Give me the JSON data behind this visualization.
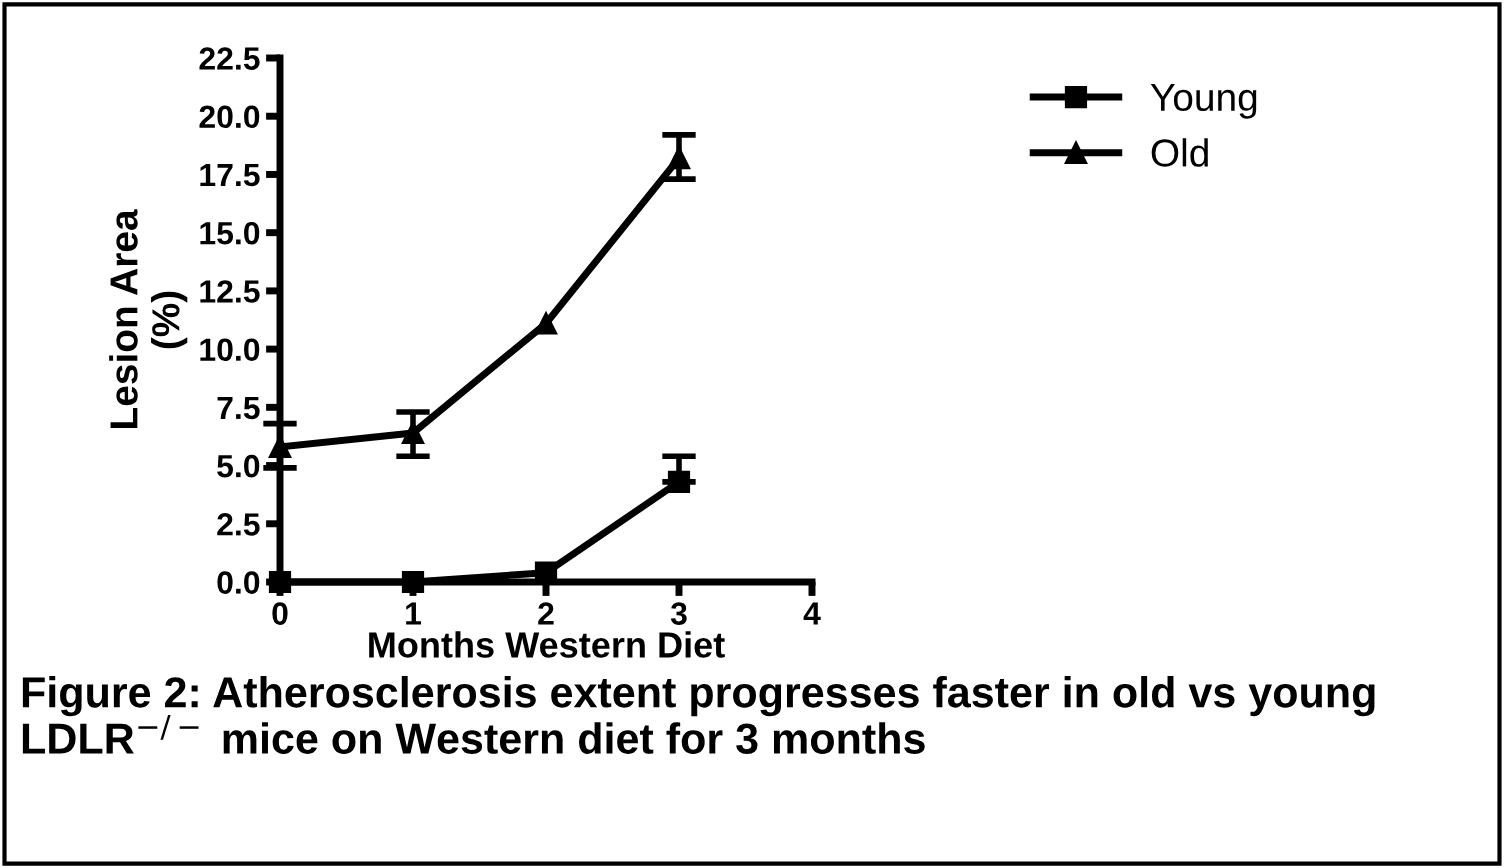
{
  "chart_data": {
    "type": "line",
    "xlabel": "Months Western Diet",
    "ylabel": "Lesion Area\n(%)",
    "x": [
      0,
      1,
      2,
      3
    ],
    "series": [
      {
        "name": "Young",
        "color": "#000000",
        "marker": "square",
        "values": [
          0,
          0,
          0.4,
          4.3
        ],
        "errors": [
          null,
          null,
          null,
          [
            4.3,
            5.4
          ]
        ]
      },
      {
        "name": "Old",
        "color": "#000000",
        "marker": "triangle",
        "values": [
          5.8,
          6.4,
          11.1,
          18.2
        ],
        "errors": [
          [
            4.9,
            6.8
          ],
          [
            5.4,
            7.3
          ],
          null,
          [
            17.3,
            19.2
          ]
        ]
      }
    ],
    "xlim": [
      0,
      4
    ],
    "xticks": [
      0,
      1,
      2,
      3,
      4
    ],
    "ylim": [
      0,
      22.5
    ],
    "yticks": [
      {
        "value": 0,
        "label": "0.0"
      },
      {
        "value": 2.5,
        "label": "2.5"
      },
      {
        "value": 5,
        "label": "5.0"
      },
      {
        "value": 7.5,
        "label": "7.5"
      },
      {
        "value": 10,
        "label": "10.0"
      },
      {
        "value": 12.5,
        "label": "12.5"
      },
      {
        "value": 15,
        "label": "15.0"
      },
      {
        "value": 17.5,
        "label": "17.5"
      },
      {
        "value": 20,
        "label": "20.0"
      },
      {
        "value": 22.5,
        "label": "22.5"
      }
    ],
    "grid": false,
    "legend": "top right",
    "line_style": "solid",
    "annotations": [
      "Figure 2: Atherosclerosis extent progresses faster in old vs young LDLR$^{−/−}$ mice on Western diet for 3 months"
    ]
  }
}
